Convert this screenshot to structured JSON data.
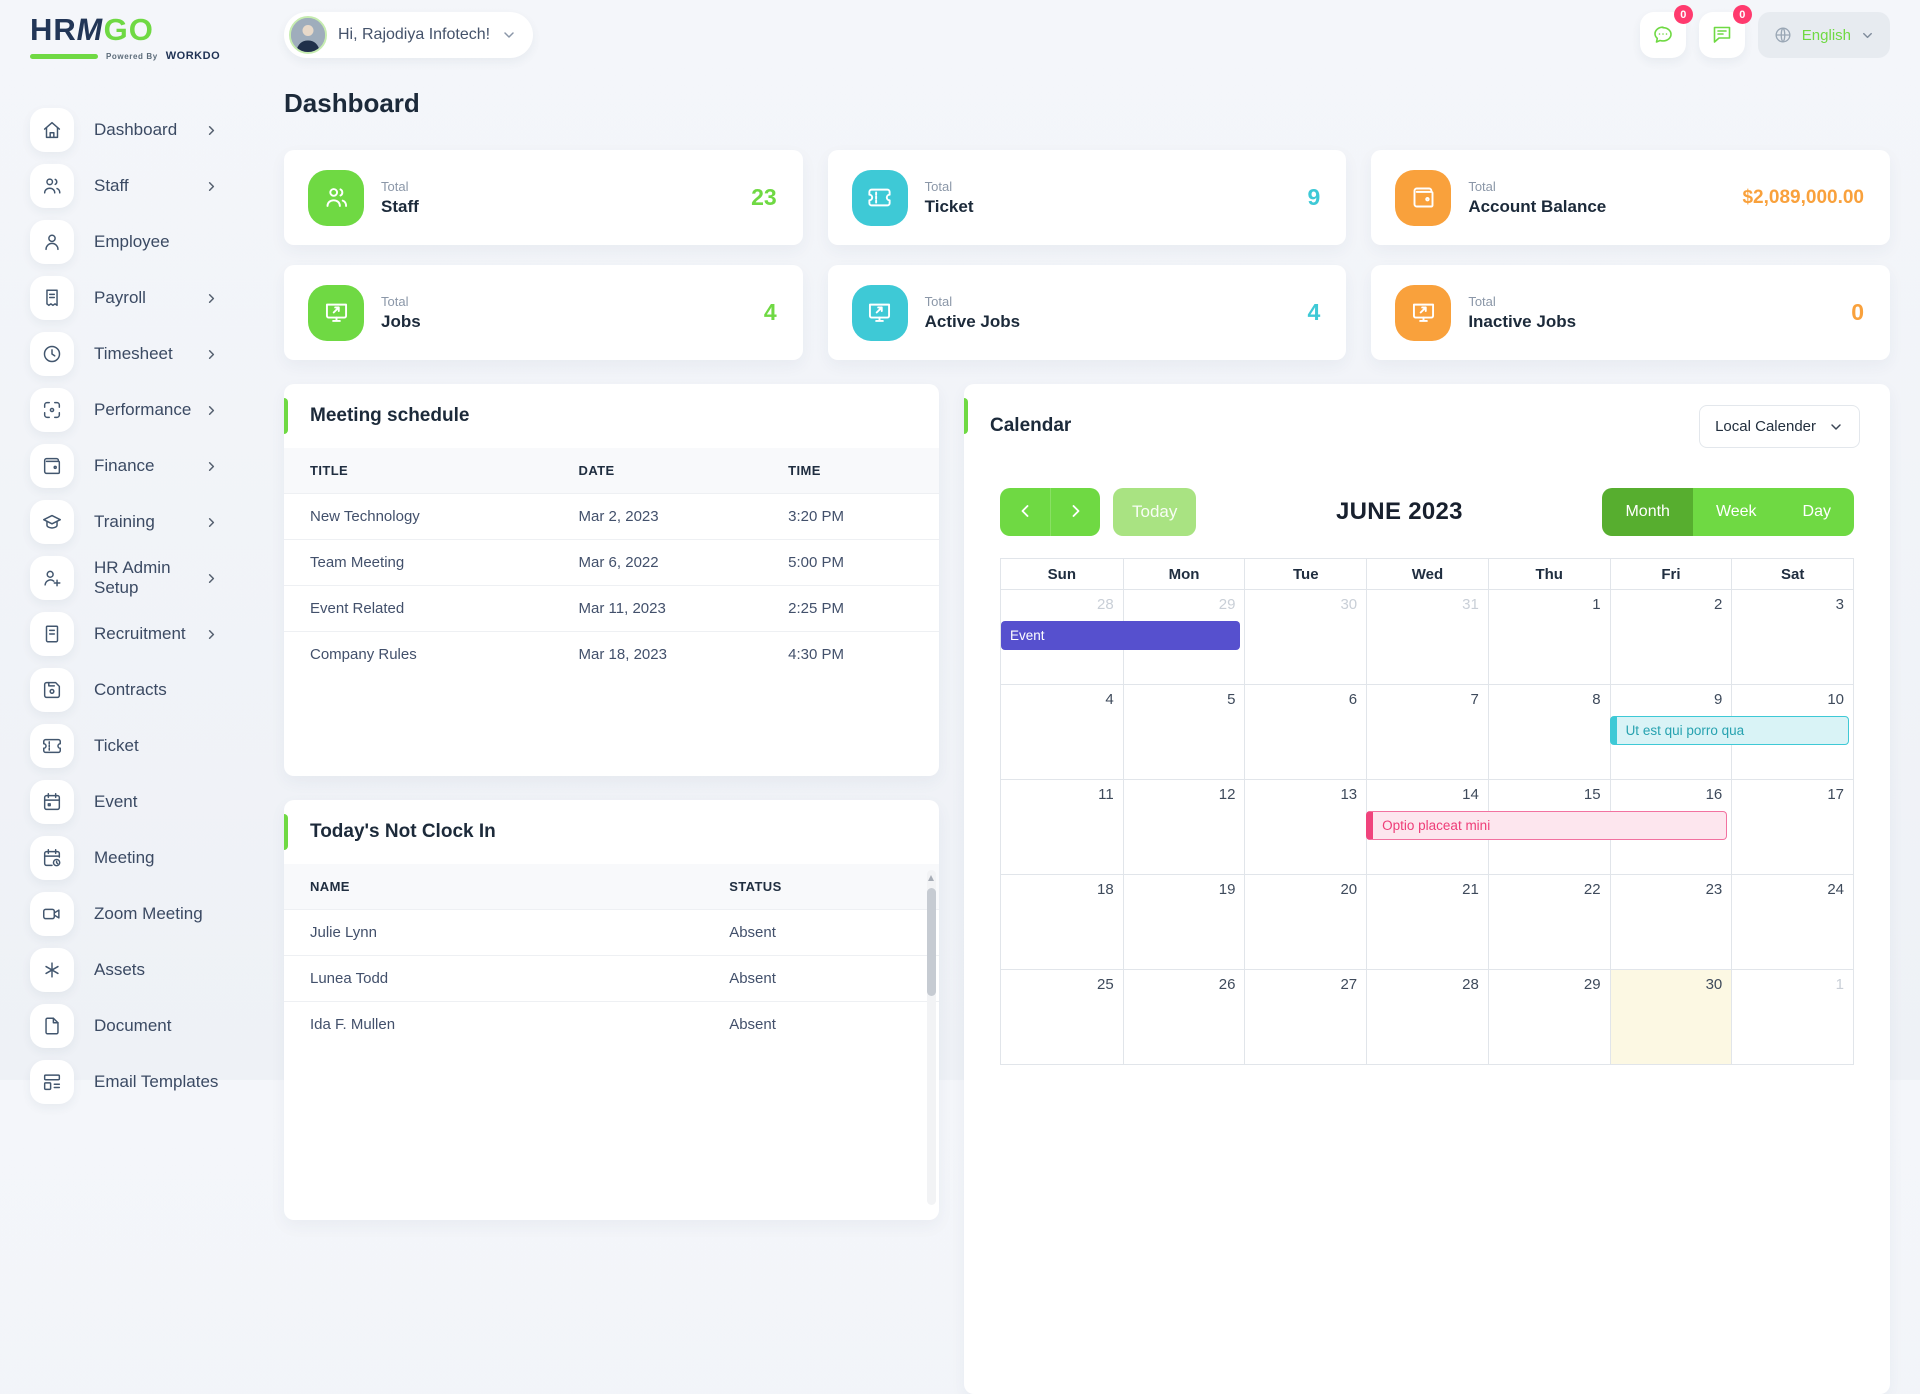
{
  "brand": {
    "text_dark": "HR",
    "text_m": "M",
    "text_green": "GO",
    "powered_prefix": "Powered By",
    "powered_brand": "WORKDO"
  },
  "topbar": {
    "greeting": "Hi, Rajodiya Infotech!",
    "notifications": [
      {
        "name": "messages",
        "icon": "chat-icon",
        "count": "0"
      },
      {
        "name": "announcements",
        "icon": "feedback-icon",
        "count": "0"
      }
    ],
    "language": {
      "label": "English",
      "icon": "globe-icon"
    }
  },
  "page": {
    "title": "Dashboard"
  },
  "sidebar": {
    "items": [
      {
        "label": "Dashboard",
        "icon": "home-icon",
        "has_children": true
      },
      {
        "label": "Staff",
        "icon": "users-icon",
        "has_children": true
      },
      {
        "label": "Employee",
        "icon": "user-icon",
        "has_children": false
      },
      {
        "label": "Payroll",
        "icon": "receipt-icon",
        "has_children": true
      },
      {
        "label": "Timesheet",
        "icon": "clock-icon",
        "has_children": true
      },
      {
        "label": "Performance",
        "icon": "target-icon",
        "has_children": true
      },
      {
        "label": "Finance",
        "icon": "wallet-icon",
        "has_children": true
      },
      {
        "label": "Training",
        "icon": "graduation-cap-icon",
        "has_children": true
      },
      {
        "label": "HR Admin Setup",
        "icon": "user-plus-icon",
        "has_children": true
      },
      {
        "label": "Recruitment",
        "icon": "script-icon",
        "has_children": true
      },
      {
        "label": "Contracts",
        "icon": "floppy-icon",
        "has_children": false
      },
      {
        "label": "Ticket",
        "icon": "ticket-icon",
        "has_children": false
      },
      {
        "label": "Event",
        "icon": "calendar-icon",
        "has_children": false
      },
      {
        "label": "Meeting",
        "icon": "calendar-clock-icon",
        "has_children": false
      },
      {
        "label": "Zoom Meeting",
        "icon": "video-icon",
        "has_children": false
      },
      {
        "label": "Assets",
        "icon": "asterisk-icon",
        "has_children": false
      },
      {
        "label": "Document",
        "icon": "file-icon",
        "has_children": false
      },
      {
        "label": "Email Templates",
        "icon": "layout-icon",
        "has_children": false
      }
    ]
  },
  "stats": [
    {
      "prefix": "Total",
      "label": "Staff",
      "value": "23",
      "icon": "users-icon",
      "color": "green"
    },
    {
      "prefix": "Total",
      "label": "Ticket",
      "value": "9",
      "icon": "ticket-icon",
      "color": "cyan"
    },
    {
      "prefix": "Total",
      "label": "Account Balance",
      "value": "$2,089,000.00",
      "icon": "wallet-icon",
      "color": "orange"
    },
    {
      "prefix": "Total",
      "label": "Jobs",
      "value": "4",
      "icon": "screen-share-icon",
      "color": "green"
    },
    {
      "prefix": "Total",
      "label": "Active Jobs",
      "value": "4",
      "icon": "screen-share-icon",
      "color": "cyan"
    },
    {
      "prefix": "Total",
      "label": "Inactive Jobs",
      "value": "0",
      "icon": "screen-share-icon",
      "color": "orange"
    }
  ],
  "meeting_schedule": {
    "title": "Meeting schedule",
    "columns": [
      "Title",
      "Date",
      "Time"
    ],
    "rows": [
      [
        "New Technology",
        "Mar 2, 2023",
        "3:20 PM"
      ],
      [
        "Team Meeting",
        "Mar 6, 2022",
        "5:00 PM"
      ],
      [
        "Event Related",
        "Mar 11, 2023",
        "2:25 PM"
      ],
      [
        "Company Rules",
        "Mar 18, 2023",
        "4:30 PM"
      ]
    ]
  },
  "not_clock_in": {
    "title": "Today's Not Clock In",
    "columns": [
      "Name",
      "Status"
    ],
    "rows": [
      [
        "Julie Lynn",
        "Absent"
      ],
      [
        "Lunea Todd",
        "Absent"
      ],
      [
        "Ida F. Mullen",
        "Absent"
      ]
    ]
  },
  "calendar": {
    "title": "Calendar",
    "source_label": "Local Calender",
    "nav": {
      "today": "Today"
    },
    "month_label": "JUNE 2023",
    "views": [
      "Month",
      "Week",
      "Day"
    ],
    "active_view": "Month",
    "day_headers": [
      "Sun",
      "Mon",
      "Tue",
      "Wed",
      "Thu",
      "Fri",
      "Sat"
    ],
    "weeks": [
      [
        {
          "d": "28",
          "muted": true
        },
        {
          "d": "29",
          "muted": true
        },
        {
          "d": "30",
          "muted": true
        },
        {
          "d": "31",
          "muted": true
        },
        {
          "d": "1"
        },
        {
          "d": "2"
        },
        {
          "d": "3"
        }
      ],
      [
        {
          "d": "4"
        },
        {
          "d": "5"
        },
        {
          "d": "6"
        },
        {
          "d": "7"
        },
        {
          "d": "8"
        },
        {
          "d": "9"
        },
        {
          "d": "10"
        }
      ],
      [
        {
          "d": "11"
        },
        {
          "d": "12"
        },
        {
          "d": "13"
        },
        {
          "d": "14"
        },
        {
          "d": "15"
        },
        {
          "d": "16"
        },
        {
          "d": "17"
        }
      ],
      [
        {
          "d": "18"
        },
        {
          "d": "19"
        },
        {
          "d": "20"
        },
        {
          "d": "21"
        },
        {
          "d": "22"
        },
        {
          "d": "23"
        },
        {
          "d": "24"
        }
      ],
      [
        {
          "d": "25"
        },
        {
          "d": "26"
        },
        {
          "d": "27"
        },
        {
          "d": "28"
        },
        {
          "d": "29"
        },
        {
          "d": "30",
          "today": true
        },
        {
          "d": "1",
          "muted": true
        }
      ]
    ],
    "events": [
      {
        "title": "Event",
        "week": 0,
        "start": 0,
        "span": 2,
        "style": "purple"
      },
      {
        "title": "Ut est qui porro qua",
        "week": 1,
        "start": 5,
        "span": 2,
        "style": "cyan"
      },
      {
        "title": "Optio placeat mini",
        "week": 2,
        "start": 3,
        "span": 3,
        "style": "pink"
      }
    ],
    "colors": {
      "event_purple": "#5650ce",
      "event_cyan": "#3ec9d6",
      "event_pink": "#f0437c",
      "today_bg": "#fcf8e3"
    }
  },
  "colors": {
    "green": "#6fd943",
    "green_dark": "#57ae2f",
    "cyan": "#3ec9d6",
    "orange": "#f9a13c",
    "navy": "#1f3254",
    "badge": "#ff3a6e"
  }
}
